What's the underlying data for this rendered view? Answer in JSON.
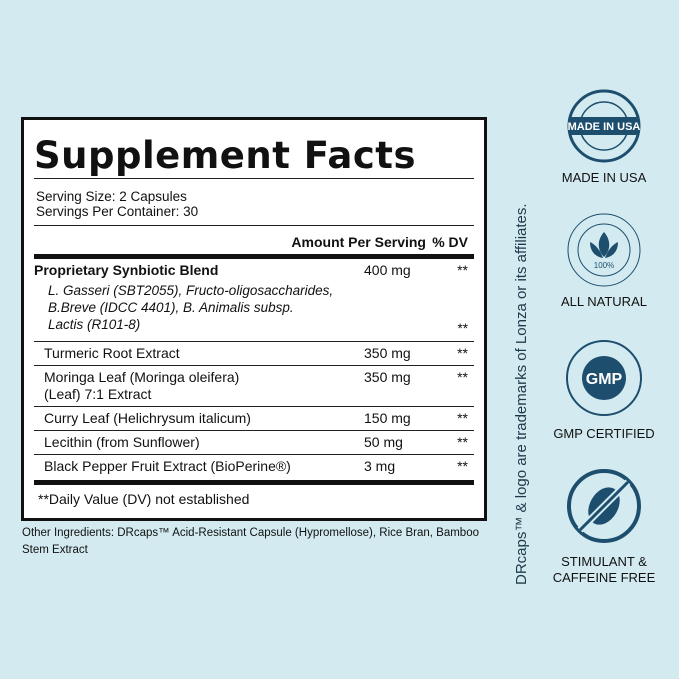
{
  "label": {
    "title": "Supplement Facts",
    "serving_size": "Serving Size: 2 Capsules",
    "servings_per_container": "Servings Per Container: 30",
    "header_amount": "Amount Per Serving",
    "header_dv": "% DV",
    "blend": {
      "name": "Proprietary Synbiotic Blend",
      "amount": "400 mg",
      "dv": "**",
      "sub_line1": "L. Gasseri (SBT2055), Fructo-oligosaccharides,",
      "sub_line2": "B.Breve (IDCC 4401), B. Animalis subsp.",
      "sub_line3": "Lactis (R101-8)",
      "sub_dv": "**"
    },
    "rows": [
      {
        "name": "Turmeric Root Extract",
        "amount": "350 mg",
        "dv": "**"
      },
      {
        "name": "Moringa Leaf (Moringa oleifera)",
        "name2": "(Leaf) 7:1 Extract",
        "amount": "350 mg",
        "dv": "**"
      },
      {
        "name": "Curry Leaf (Helichrysum italicum)",
        "amount": "150 mg",
        "dv": "**"
      },
      {
        "name": "Lecithin (from Sunflower)",
        "amount": "50 mg",
        "dv": "**"
      },
      {
        "name": "Black Pepper Fruit Extract (BioPerine®)",
        "amount": "3 mg",
        "dv": "**"
      }
    ],
    "footnote": "**Daily Value (DV) not established"
  },
  "other_ingredients": "Other Ingredients: DRcaps™ Acid-Resistant Capsule (Hypromellose), Rice Bran, Bamboo Stem Extract",
  "trademark": "DRcaps™ & logo are trademarks of Lonza or its affiliates.",
  "badges": [
    {
      "icon": "made-in-usa-seal",
      "seal_text": "MADE IN USA",
      "label": "MADE IN USA"
    },
    {
      "icon": "natural-leaf-seal",
      "seal_text": "100%",
      "label": "ALL NATURAL"
    },
    {
      "icon": "gmp-seal",
      "seal_text": "GMP",
      "label": "GMP CERTIFIED"
    },
    {
      "icon": "no-coffee-bean",
      "label_line1": "STIMULANT &",
      "label_line2": "CAFFEINE FREE"
    }
  ],
  "colors": {
    "background": "#d3ebf0",
    "badge": "#1d4e6e"
  }
}
